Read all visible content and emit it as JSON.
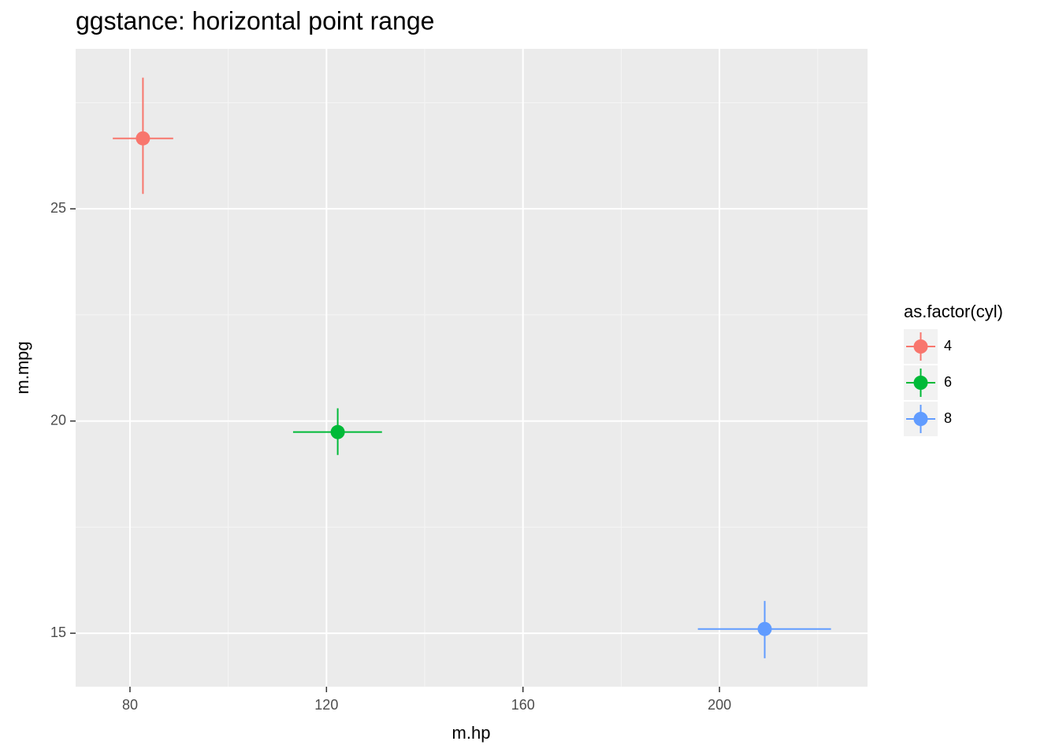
{
  "chart_data": {
    "type": "pointrange",
    "title": "ggstance: horizontal point range",
    "x_label": "m.hp",
    "y_label": "m.mpg",
    "legend_title": "as.factor(cyl)",
    "legend": "right",
    "xlim": [
      68.94,
      230.14
    ],
    "ylim": [
      13.74,
      28.77
    ],
    "xticks": [
      80,
      120,
      160,
      200
    ],
    "yticks": [
      15,
      20,
      25
    ],
    "xminor": [
      100,
      140,
      180,
      220
    ],
    "yminor": [
      17.5,
      22.5,
      27.5
    ],
    "grid": true,
    "series": [
      {
        "name": "4",
        "color": "#f8766d",
        "x": [
          82.64
        ],
        "y": [
          26.66
        ],
        "xmin": [
          76.5
        ],
        "xmax": [
          88.8
        ],
        "ymin": [
          25.35
        ],
        "ymax": [
          28.09
        ]
      },
      {
        "name": "6",
        "color": "#00ba38",
        "x": [
          122.29
        ],
        "y": [
          19.74
        ],
        "xmin": [
          113.2
        ],
        "xmax": [
          131.3
        ],
        "ymin": [
          19.2
        ],
        "ymax": [
          20.3
        ]
      },
      {
        "name": "8",
        "color": "#619cff",
        "x": [
          209.21
        ],
        "y": [
          15.1
        ],
        "xmin": [
          195.6
        ],
        "xmax": [
          222.7
        ],
        "ymin": [
          14.41
        ],
        "ymax": [
          15.76
        ]
      }
    ]
  }
}
